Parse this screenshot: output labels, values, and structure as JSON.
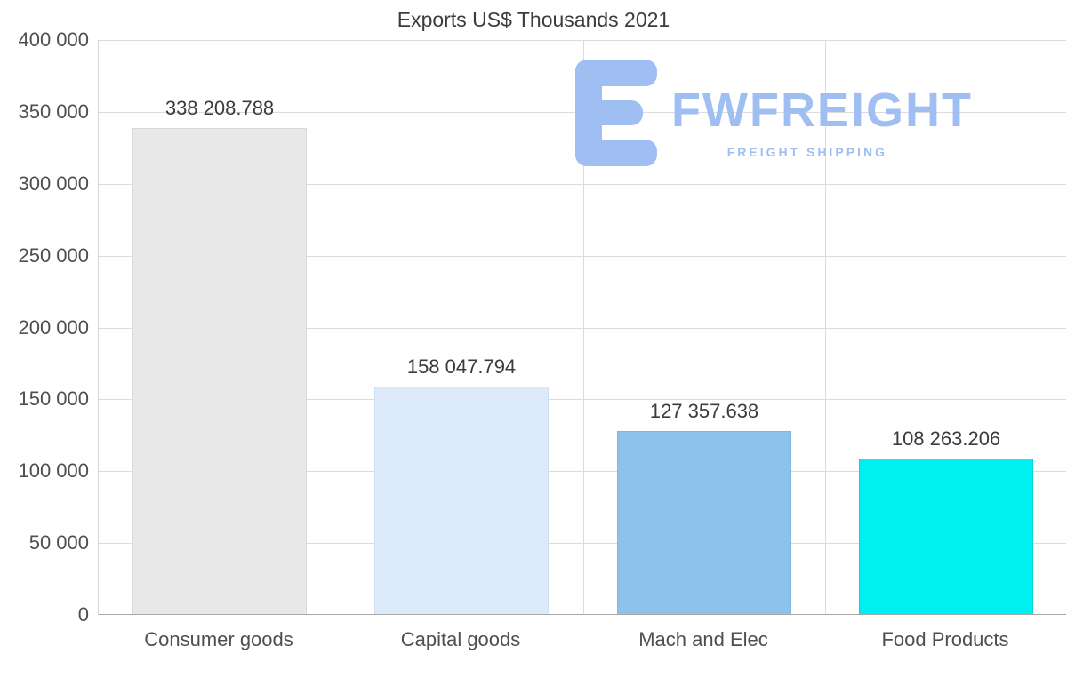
{
  "page": {
    "background": "#ffffff"
  },
  "chart_data": {
    "type": "bar",
    "title": "Exports US$ Thousands 2021",
    "categories": [
      "Consumer goods",
      "Capital goods",
      "Mach and Elec",
      "Food Products"
    ],
    "values": [
      338208.788,
      158047.794,
      127357.638,
      108263.206
    ],
    "value_labels": [
      "338 208.788",
      "158 047.794",
      "127 357.638",
      "108 263.206"
    ],
    "bar_colors": [
      "#e8e8e8",
      "#dceafa",
      "#8fc2ea",
      "#00eff0"
    ],
    "bar_border_colors": [
      "#d9d9d9",
      "#cde0f4",
      "#7cb6e1",
      "#00d8dc"
    ],
    "xlabel": "",
    "ylabel": "",
    "ylim": [
      0,
      400000
    ],
    "ytick_step": 50000,
    "ytick_labels": [
      "0",
      "50 000",
      "100 000",
      "150 000",
      "200 000",
      "250 000",
      "300 000",
      "350 000",
      "400 000"
    ],
    "grid": true,
    "legend": false
  },
  "watermark": {
    "brand": "FWFREIGHT",
    "tagline": "FREIGHT SHIPPING",
    "color": "#9fbef2"
  }
}
